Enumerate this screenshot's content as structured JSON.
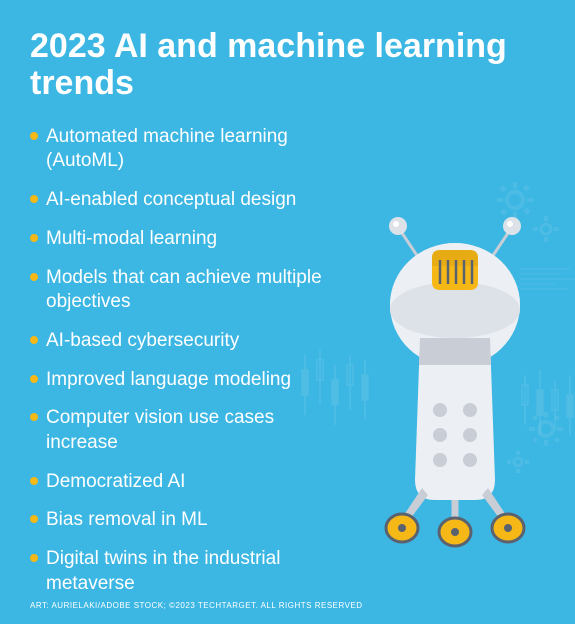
{
  "background_color": "#3cb6e3",
  "title": {
    "text": "2023 AI and machine learning trends",
    "color": "#ffffff",
    "fontsize": 34,
    "fontweight": 700
  },
  "bullet": {
    "color": "#f5b817",
    "diameter": 8
  },
  "list": {
    "fontsize": 19,
    "color": "#ffffff",
    "item_spacing": 14,
    "items": [
      "Automated machine learning (AutoML)",
      "AI-enabled conceptual design",
      "Multi-modal learning",
      "Models that can achieve multiple objectives",
      "AI-based cybersecurity",
      "Improved language modeling",
      "Computer vision use cases increase",
      "Democratized AI",
      "Bias removal in ML",
      "Digital twins in the industrial metaverse"
    ]
  },
  "attribution": {
    "text": "ART: AURIELAKI/ADOBE STOCK; ©2023 TECHTARGET. ALL RIGHTS RESERVED",
    "fontsize": 8,
    "color": "#ffffff"
  },
  "robot": {
    "body_color": "#eceff4",
    "body_shadow": "#c8cdd6",
    "accent_color": "#f5b817",
    "accent_dark": "#d9a012",
    "grill_color": "#5a6270",
    "dot_color": "#c8cdd6",
    "antenna_ball": "#dde2e8"
  },
  "decorations": {
    "gear_color": "#6fc9ea",
    "chart_color": "#7fd0ec"
  }
}
